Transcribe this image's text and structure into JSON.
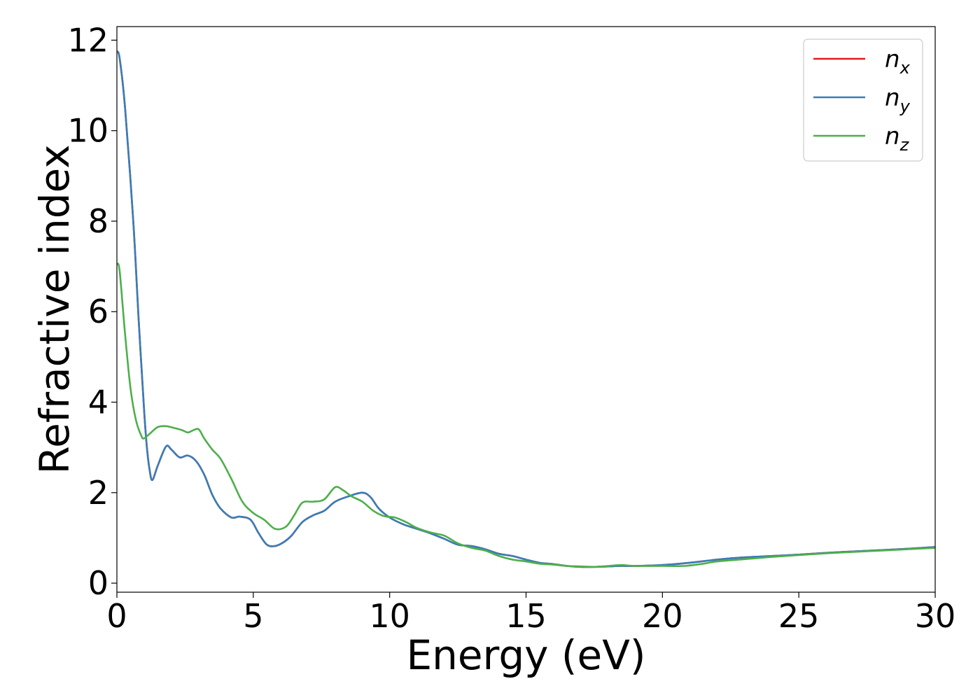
{
  "chart_data": {
    "type": "line",
    "title": "",
    "xlabel": "Energy (eV)",
    "ylabel": "Refractive index",
    "xlim": [
      0,
      30
    ],
    "ylim": [
      -0.2,
      12.3
    ],
    "xticks": [
      0,
      5,
      10,
      15,
      20,
      25,
      30
    ],
    "yticks": [
      0,
      2,
      4,
      6,
      8,
      10,
      12
    ],
    "grid": false,
    "legend_position": "top-right",
    "series": [
      {
        "name": "n",
        "subscript": "x",
        "color": "#e41a1c",
        "x": [
          0,
          0.1,
          0.3,
          0.6,
          0.8,
          1.0,
          1.1,
          1.2,
          1.3,
          1.5,
          1.8,
          2.0,
          2.3,
          2.6,
          2.9,
          3.2,
          3.5,
          3.8,
          4.2,
          4.5,
          4.9,
          5.2,
          5.5,
          5.8,
          6.1,
          6.4,
          6.8,
          7.2,
          7.6,
          8.0,
          8.5,
          9.0,
          9.3,
          9.6,
          10.0,
          10.5,
          11.0,
          11.5,
          12.0,
          12.5,
          13.0,
          13.5,
          14.0,
          14.5,
          15.0,
          15.5,
          16.0,
          16.5,
          17.0,
          17.5,
          18.0,
          18.5,
          19.0,
          20.0,
          21.0,
          22.0,
          23.0,
          24.0,
          25.0,
          26.0,
          27.0,
          28.0,
          29.0,
          30.0
        ],
        "values": [
          11.75,
          11.6,
          10.5,
          8.0,
          5.8,
          3.8,
          3.0,
          2.5,
          2.28,
          2.6,
          3.02,
          2.95,
          2.78,
          2.82,
          2.7,
          2.4,
          1.95,
          1.65,
          1.45,
          1.47,
          1.4,
          1.1,
          0.85,
          0.82,
          0.9,
          1.05,
          1.35,
          1.5,
          1.6,
          1.8,
          1.92,
          2.0,
          1.9,
          1.65,
          1.45,
          1.3,
          1.2,
          1.1,
          0.98,
          0.85,
          0.82,
          0.75,
          0.65,
          0.6,
          0.52,
          0.45,
          0.42,
          0.38,
          0.36,
          0.36,
          0.37,
          0.38,
          0.38,
          0.4,
          0.45,
          0.52,
          0.57,
          0.6,
          0.63,
          0.67,
          0.7,
          0.73,
          0.76,
          0.8
        ]
      },
      {
        "name": "n",
        "subscript": "y",
        "color": "#377eb8",
        "x": [
          0,
          0.1,
          0.3,
          0.6,
          0.8,
          1.0,
          1.1,
          1.2,
          1.3,
          1.5,
          1.8,
          2.0,
          2.3,
          2.6,
          2.9,
          3.2,
          3.5,
          3.8,
          4.2,
          4.5,
          4.9,
          5.2,
          5.5,
          5.8,
          6.1,
          6.4,
          6.8,
          7.2,
          7.6,
          8.0,
          8.5,
          9.0,
          9.3,
          9.6,
          10.0,
          10.5,
          11.0,
          11.5,
          12.0,
          12.5,
          13.0,
          13.5,
          14.0,
          14.5,
          15.0,
          15.5,
          16.0,
          16.5,
          17.0,
          17.5,
          18.0,
          18.5,
          19.0,
          20.0,
          21.0,
          22.0,
          23.0,
          24.0,
          25.0,
          26.0,
          27.0,
          28.0,
          29.0,
          30.0
        ],
        "values": [
          11.75,
          11.6,
          10.5,
          8.0,
          5.8,
          3.8,
          3.0,
          2.5,
          2.28,
          2.6,
          3.02,
          2.95,
          2.78,
          2.82,
          2.7,
          2.4,
          1.95,
          1.65,
          1.45,
          1.47,
          1.4,
          1.1,
          0.85,
          0.82,
          0.9,
          1.05,
          1.35,
          1.5,
          1.6,
          1.8,
          1.92,
          2.0,
          1.9,
          1.65,
          1.45,
          1.3,
          1.2,
          1.1,
          0.98,
          0.85,
          0.82,
          0.75,
          0.65,
          0.6,
          0.52,
          0.45,
          0.42,
          0.38,
          0.36,
          0.36,
          0.37,
          0.38,
          0.38,
          0.4,
          0.45,
          0.52,
          0.57,
          0.6,
          0.63,
          0.67,
          0.7,
          0.73,
          0.76,
          0.8
        ]
      },
      {
        "name": "n",
        "subscript": "z",
        "color": "#4daf4a",
        "x": [
          0,
          0.1,
          0.3,
          0.5,
          0.7,
          0.9,
          1.0,
          1.2,
          1.5,
          1.8,
          2.1,
          2.4,
          2.6,
          2.8,
          3.0,
          3.2,
          3.5,
          3.8,
          4.2,
          4.6,
          5.0,
          5.4,
          5.8,
          6.2,
          6.5,
          6.8,
          7.2,
          7.6,
          8.0,
          8.3,
          8.6,
          9.0,
          9.4,
          9.8,
          10.2,
          10.6,
          11.0,
          11.5,
          12.0,
          12.5,
          13.0,
          13.5,
          14.0,
          14.5,
          15.0,
          15.5,
          16.0,
          16.5,
          17.0,
          17.5,
          18.0,
          18.5,
          19.0,
          20.0,
          20.8,
          21.5,
          22.0,
          23.0,
          24.0,
          25.0,
          26.0,
          27.0,
          28.0,
          29.0,
          30.0
        ],
        "values": [
          7.05,
          6.9,
          5.5,
          4.3,
          3.6,
          3.25,
          3.2,
          3.3,
          3.45,
          3.47,
          3.43,
          3.38,
          3.33,
          3.38,
          3.4,
          3.2,
          2.95,
          2.75,
          2.3,
          1.8,
          1.55,
          1.4,
          1.2,
          1.25,
          1.5,
          1.78,
          1.8,
          1.85,
          2.12,
          2.05,
          1.92,
          1.8,
          1.6,
          1.48,
          1.45,
          1.35,
          1.22,
          1.12,
          1.05,
          0.88,
          0.78,
          0.72,
          0.6,
          0.52,
          0.48,
          0.43,
          0.41,
          0.38,
          0.37,
          0.36,
          0.38,
          0.4,
          0.38,
          0.38,
          0.38,
          0.43,
          0.48,
          0.53,
          0.58,
          0.62,
          0.66,
          0.69,
          0.72,
          0.75,
          0.78
        ]
      }
    ]
  }
}
